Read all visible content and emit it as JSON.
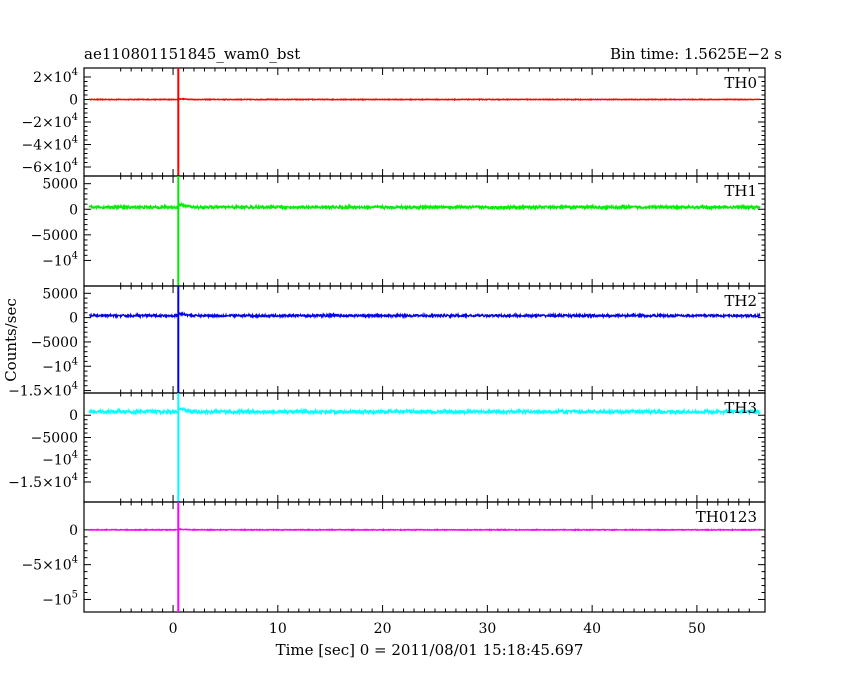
{
  "header": {
    "title": "ae110801151845_wam0_bst",
    "bin_time": "Bin time: 1.5625E−2 s"
  },
  "chart_data": {
    "type": "line",
    "title": "ae110801151845_wam0_bst",
    "bin_time": "Bin time: 1.5625E−2 s",
    "xlabel": "Time [sec] 0 = 2011/08/01 15:18:45.697",
    "ylabel": "Counts/sec",
    "xlim": [
      -8.5,
      56.5
    ],
    "x_ticks": [
      0,
      10,
      20,
      30,
      40,
      50
    ],
    "x_tick_labels": [
      "0",
      "10",
      "20",
      "30",
      "40",
      "50"
    ],
    "burst_time": 0.5,
    "x_range": [
      -8,
      56
    ],
    "grid": false,
    "panels": [
      {
        "name": "TH0",
        "color": "#ff0000",
        "ylim": [
          -68000,
          28000
        ],
        "baseline": 0,
        "noise": 300,
        "burst": {
          "peak_high": 28000,
          "peak_low": -68000
        },
        "y_ticks": [
          {
            "value": 20000,
            "base": "2×10",
            "exp": "4"
          },
          {
            "value": 0,
            "base": "0",
            "exp": ""
          },
          {
            "value": -20000,
            "base": "−2×10",
            "exp": "4"
          },
          {
            "value": -40000,
            "base": "−4×10",
            "exp": "4"
          },
          {
            "value": -60000,
            "base": "−6×10",
            "exp": "4"
          }
        ]
      },
      {
        "name": "TH1",
        "color": "#00ee00",
        "ylim": [
          -15000,
          6500
        ],
        "baseline": 400,
        "noise": 250,
        "burst": {
          "peak_high": 6500,
          "peak_low": -15000
        },
        "y_ticks": [
          {
            "value": 5000,
            "base": "5000",
            "exp": ""
          },
          {
            "value": 0,
            "base": "0",
            "exp": ""
          },
          {
            "value": -5000,
            "base": "−5000",
            "exp": ""
          },
          {
            "value": -10000,
            "base": "−10",
            "exp": "4"
          }
        ]
      },
      {
        "name": "TH2",
        "color": "#0000ee",
        "ylim": [
          -15500,
          6500
        ],
        "baseline": 400,
        "noise": 220,
        "burst": {
          "peak_high": 6500,
          "peak_low": -15500
        },
        "y_ticks": [
          {
            "value": 5000,
            "base": "5000",
            "exp": ""
          },
          {
            "value": 0,
            "base": "0",
            "exp": ""
          },
          {
            "value": -5000,
            "base": "−5000",
            "exp": ""
          },
          {
            "value": -10000,
            "base": "−10",
            "exp": "4"
          },
          {
            "value": -15000,
            "base": "−1.5×10",
            "exp": "4"
          }
        ]
      },
      {
        "name": "TH3",
        "color": "#00ffff",
        "ylim": [
          -19500,
          5000
        ],
        "baseline": 800,
        "noise": 350,
        "burst": {
          "peak_high": 5000,
          "peak_low": -19500
        },
        "y_ticks": [
          {
            "value": 0,
            "base": "0",
            "exp": ""
          },
          {
            "value": -5000,
            "base": "−5000",
            "exp": ""
          },
          {
            "value": -10000,
            "base": "−10",
            "exp": "4"
          },
          {
            "value": -15000,
            "base": "−1.5×10",
            "exp": "4"
          }
        ]
      },
      {
        "name": "TH0123",
        "color": "#ff00ff",
        "ylim": [
          -118000,
          40000
        ],
        "baseline": 0,
        "noise": 500,
        "burst": {
          "peak_high": 40000,
          "peak_low": -118000
        },
        "y_ticks": [
          {
            "value": 0,
            "base": "0",
            "exp": ""
          },
          {
            "value": -50000,
            "base": "−5×10",
            "exp": "4"
          },
          {
            "value": -100000,
            "base": "−10",
            "exp": "5"
          }
        ]
      }
    ]
  }
}
